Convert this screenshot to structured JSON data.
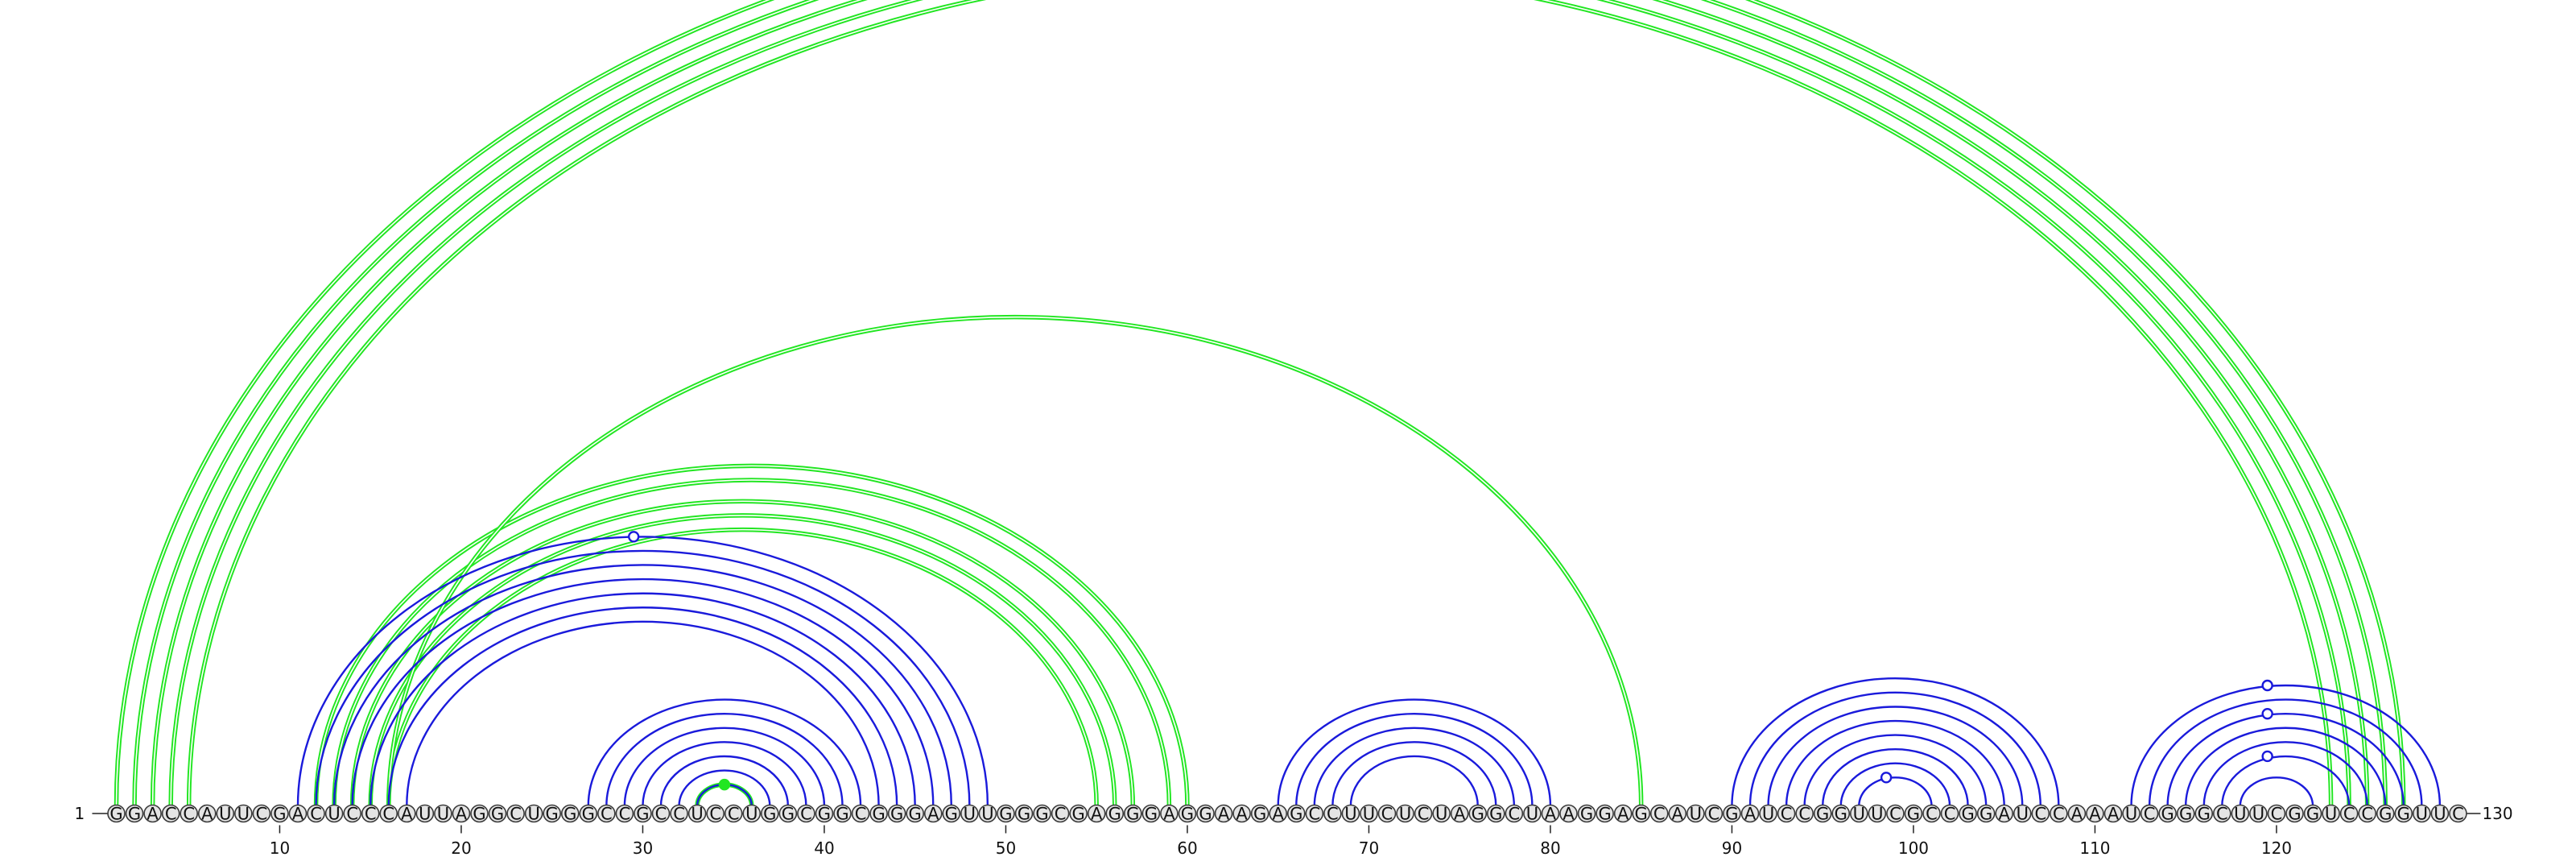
{
  "sequence": "GGACCAUUCGACUCCCAUUAGGCUGGGCCGCCUCCUGGCGGCGGGAGUUGGGCGAGGGAGGAAGAGCCUUCUCUAGGCUAAGGAGCAUCGAUCCGGUUCGCCGGAUCCAAAUCGGGCUUCGGUCCGGUUC",
  "start_label": "1",
  "end_label": "130",
  "ticks": [
    {
      "pos": 10,
      "label": "10"
    },
    {
      "pos": 20,
      "label": "20"
    },
    {
      "pos": 30,
      "label": "30"
    },
    {
      "pos": 40,
      "label": "40"
    },
    {
      "pos": 50,
      "label": "50"
    },
    {
      "pos": 60,
      "label": "60"
    },
    {
      "pos": 70,
      "label": "70"
    },
    {
      "pos": 80,
      "label": "80"
    },
    {
      "pos": 90,
      "label": "90"
    },
    {
      "pos": 100,
      "label": "100"
    },
    {
      "pos": 110,
      "label": "110"
    },
    {
      "pos": 120,
      "label": "120"
    }
  ],
  "colors": {
    "blue_arc": "#1a1adb",
    "green_arc": "#22e622",
    "green_inner": "#ffffff"
  },
  "blue_arcs": [
    [
      11,
      49
    ],
    [
      12,
      48
    ],
    [
      13,
      47
    ],
    [
      14,
      46
    ],
    [
      15,
      45
    ],
    [
      16,
      44
    ],
    [
      17,
      43
    ],
    [
      27,
      42
    ],
    [
      28,
      41
    ],
    [
      29,
      40
    ],
    [
      30,
      39
    ],
    [
      31,
      38
    ],
    [
      32,
      37
    ],
    [
      33,
      36
    ],
    [
      65,
      80
    ],
    [
      66,
      79
    ],
    [
      67,
      78
    ],
    [
      68,
      77
    ],
    [
      69,
      76
    ],
    [
      90,
      108
    ],
    [
      91,
      107
    ],
    [
      92,
      106
    ],
    [
      93,
      105
    ],
    [
      94,
      104
    ],
    [
      95,
      103
    ],
    [
      96,
      102
    ],
    [
      97,
      101
    ],
    [
      112,
      129
    ],
    [
      113,
      128
    ],
    [
      114,
      127
    ],
    [
      115,
      126
    ],
    [
      116,
      125
    ],
    [
      117,
      124
    ],
    [
      118,
      122
    ]
  ],
  "green_arcs": [
    [
      1,
      127
    ],
    [
      2,
      126
    ],
    [
      3,
      125
    ],
    [
      4,
      124
    ],
    [
      5,
      123
    ],
    [
      12,
      60
    ],
    [
      13,
      59
    ],
    [
      14,
      57
    ],
    [
      15,
      56
    ],
    [
      16,
      55
    ],
    [
      16,
      85
    ],
    [
      33,
      36
    ]
  ],
  "markers": [
    {
      "pos": 29.5,
      "height_of_arc": [
        11,
        49
      ],
      "color": "blue",
      "filled": false
    },
    {
      "pos": 34.5,
      "height_of_arc": [
        33,
        36
      ],
      "color": "green",
      "filled": true
    },
    {
      "pos": 98.5,
      "height_of_arc": [
        97,
        101
      ],
      "color": "blue",
      "filled": false
    },
    {
      "pos": 119.5,
      "height_of_arc": [
        112,
        129
      ],
      "color": "blue",
      "filled": false
    },
    {
      "pos": 119.5,
      "height_of_arc": [
        114,
        127
      ],
      "color": "blue",
      "filled": false
    },
    {
      "pos": 119.5,
      "height_of_arc": [
        117,
        124
      ],
      "color": "blue",
      "filled": false
    }
  ]
}
